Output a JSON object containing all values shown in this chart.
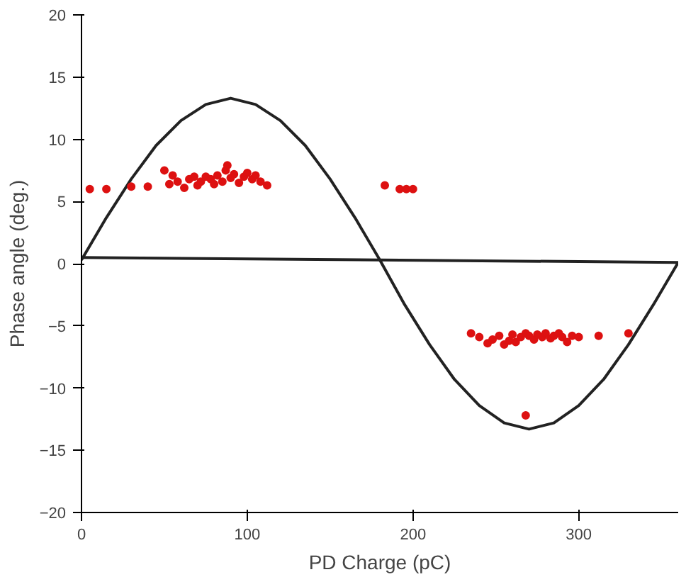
{
  "chart_data": {
    "type": "scatter",
    "xlabel": "PD Charge (pC)",
    "ylabel": "Phase angle (deg.)",
    "xlim": [
      0,
      360
    ],
    "ylim": [
      -20,
      20
    ],
    "xticks": [
      0,
      100,
      200,
      300
    ],
    "yticks": [
      -20,
      -15,
      -10,
      -5,
      0,
      5,
      10,
      15,
      20
    ],
    "grid": false,
    "series": [
      {
        "type": "line",
        "color": "#222222",
        "x": [
          0,
          15,
          30,
          45,
          60,
          75,
          90,
          105,
          120,
          135,
          150,
          165,
          180,
          195,
          210,
          225,
          240,
          255,
          270,
          285,
          300,
          315,
          330,
          345,
          360
        ],
        "values": [
          0.3,
          3.7,
          6.8,
          9.5,
          11.5,
          12.8,
          13.3,
          12.8,
          11.5,
          9.5,
          6.8,
          3.7,
          0.3,
          -3.3,
          -6.5,
          -9.3,
          -11.4,
          -12.8,
          -13.3,
          -12.8,
          -11.4,
          -9.3,
          -6.5,
          -3.3,
          0.1
        ]
      },
      {
        "type": "line",
        "color": "#222222",
        "x": [
          0,
          360
        ],
        "values": [
          0.5,
          0.1
        ]
      },
      {
        "marker": "circle",
        "color": "#dd1111",
        "x": [
          5,
          15,
          30,
          40,
          50,
          53,
          55,
          58,
          62,
          65,
          68,
          70,
          72,
          75,
          78,
          80,
          82,
          85,
          87,
          88,
          90,
          92,
          95,
          98,
          100,
          103,
          105,
          108,
          112,
          183,
          192,
          196,
          200,
          235,
          240,
          245,
          248,
          252,
          255,
          258,
          260,
          262,
          265,
          268,
          270,
          273,
          275,
          278,
          280,
          283,
          285,
          288,
          290,
          293,
          296,
          300,
          312,
          330,
          268
        ],
        "values": [
          6,
          6,
          6.2,
          6.2,
          7.5,
          6.4,
          7.1,
          6.6,
          6.1,
          6.8,
          7,
          6.3,
          6.6,
          7,
          6.8,
          6.4,
          7.1,
          6.6,
          7.5,
          7.9,
          6.9,
          7.2,
          6.5,
          7,
          7.3,
          6.8,
          7.1,
          6.6,
          6.3,
          6.3,
          6,
          6,
          6,
          -5.6,
          -5.9,
          -6.4,
          -6.1,
          -5.8,
          -6.5,
          -6.2,
          -5.7,
          -6.3,
          -5.9,
          -5.6,
          -5.8,
          -6.1,
          -5.7,
          -5.9,
          -5.6,
          -6,
          -5.8,
          -5.6,
          -5.9,
          -6.3,
          -5.8,
          -5.9,
          -5.8,
          -5.6,
          -12.2
        ]
      }
    ]
  }
}
